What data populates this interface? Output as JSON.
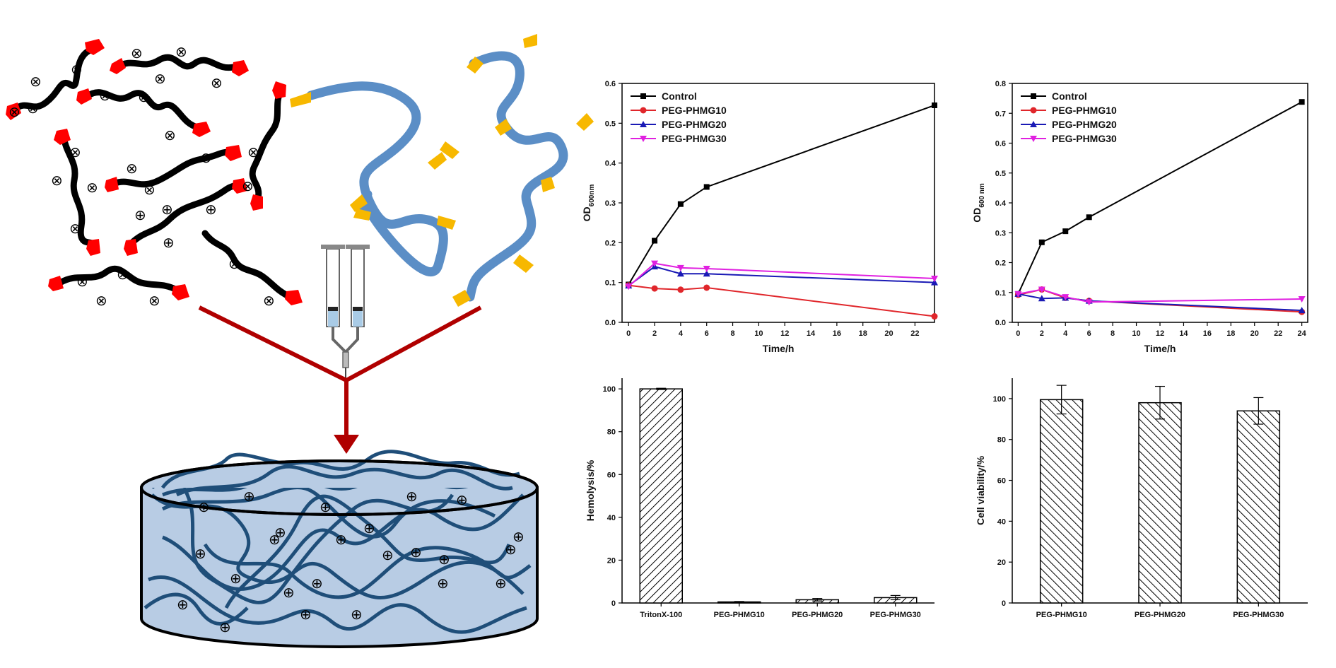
{
  "chart_data": [
    {
      "type": "line",
      "xlabel": "Time/h",
      "ylabel_main": "OD",
      "ylabel_sub": "600nm",
      "xlim": [
        -0.5,
        23.5
      ],
      "ylim": [
        0,
        0.6
      ],
      "xticks": [
        0,
        2,
        4,
        6,
        8,
        10,
        12,
        14,
        16,
        18,
        20,
        22
      ],
      "yticks": [
        0.0,
        0.1,
        0.2,
        0.3,
        0.4,
        0.5,
        0.6
      ],
      "ytick_labels": [
        "0.0",
        "0.1",
        "0.2",
        "0.3",
        "0.4",
        "0.5",
        "0.6"
      ],
      "legend_position": "top-left",
      "series": [
        {
          "name": "Control",
          "color": "#000000",
          "marker": "square",
          "x": [
            0,
            2,
            4,
            6,
            23.5
          ],
          "y": [
            0.095,
            0.205,
            0.297,
            0.34,
            0.545
          ]
        },
        {
          "name": "PEG-PHMG10",
          "color": "#e0262b",
          "marker": "circle",
          "x": [
            0,
            2,
            4,
            6,
            23.5
          ],
          "y": [
            0.093,
            0.085,
            0.082,
            0.087,
            0.015
          ]
        },
        {
          "name": "PEG-PHMG20",
          "color": "#1a1ab5",
          "marker": "triangle-up",
          "x": [
            0,
            2,
            4,
            6,
            23.5
          ],
          "y": [
            0.092,
            0.14,
            0.122,
            0.122,
            0.1
          ]
        },
        {
          "name": "PEG-PHMG30",
          "color": "#e020e0",
          "marker": "triangle-down",
          "x": [
            0,
            2,
            4,
            6,
            23.5
          ],
          "y": [
            0.09,
            0.148,
            0.137,
            0.135,
            0.11
          ]
        }
      ]
    },
    {
      "type": "line",
      "xlabel": "Time/h",
      "ylabel_main": "OD",
      "ylabel_sub": "600 nm",
      "xlim": [
        -0.5,
        24.5
      ],
      "ylim": [
        0,
        0.8
      ],
      "xticks": [
        0,
        2,
        4,
        6,
        8,
        10,
        12,
        14,
        16,
        18,
        20,
        22,
        24
      ],
      "yticks": [
        0.0,
        0.1,
        0.2,
        0.3,
        0.4,
        0.5,
        0.6,
        0.7,
        0.8
      ],
      "ytick_labels": [
        "0.0",
        "0.1",
        "0.2",
        "0.3",
        "0.4",
        "0.5",
        "0.6",
        "0.7",
        "0.8"
      ],
      "legend_position": "top-left",
      "series": [
        {
          "name": "Control",
          "color": "#000000",
          "marker": "square",
          "x": [
            0,
            2,
            4,
            6,
            24
          ],
          "y": [
            0.095,
            0.268,
            0.305,
            0.352,
            0.738
          ]
        },
        {
          "name": "PEG-PHMG10",
          "color": "#e0262b",
          "marker": "circle",
          "x": [
            0,
            2,
            4,
            6,
            24
          ],
          "y": [
            0.092,
            0.11,
            0.082,
            0.072,
            0.035
          ]
        },
        {
          "name": "PEG-PHMG20",
          "color": "#1a1ab5",
          "marker": "triangle-up",
          "x": [
            0,
            2,
            4,
            6,
            24
          ],
          "y": [
            0.095,
            0.08,
            0.082,
            0.072,
            0.04
          ]
        },
        {
          "name": "PEG-PHMG30",
          "color": "#e020e0",
          "marker": "triangle-down",
          "x": [
            0,
            2,
            4,
            6,
            24
          ],
          "y": [
            0.095,
            0.11,
            0.085,
            0.068,
            0.078
          ]
        }
      ]
    },
    {
      "type": "bar",
      "ylabel": "Hemolysis/%",
      "ylim": [
        0,
        105
      ],
      "yticks": [
        0,
        20,
        40,
        60,
        80,
        100
      ],
      "categories": [
        "TritonX-100",
        "PEG-PHMG10",
        "PEG-PHMG20",
        "PEG-PHMG30"
      ],
      "values": [
        100,
        0.5,
        1.5,
        2.5
      ],
      "errors": [
        0.3,
        0.2,
        0.6,
        1.0
      ],
      "pattern": "hatched-diagonal"
    },
    {
      "type": "bar",
      "ylabel": "Cell viability/%",
      "ylim": [
        0,
        110
      ],
      "yticks": [
        0,
        20,
        40,
        60,
        80,
        100
      ],
      "categories": [
        "PEG-PHMG10",
        "PEG-PHMG20",
        "PEG-PHMG30"
      ],
      "values": [
        99.5,
        98,
        94
      ],
      "errors": [
        7,
        8,
        6.5
      ],
      "pattern": "hatched-diagonal"
    }
  ],
  "schematic": {
    "charge_symbol_plus": "⊕",
    "charge_symbol_cross": "⊗",
    "colors": {
      "cation_polymer": "#000000",
      "end_group_red": "#ff0000",
      "peg_chain": "#5b8ec6",
      "end_group_yellow": "#f7b800",
      "arrow": "#b00000",
      "gel_fill": "#b8cce4",
      "gel_chain": "#1f4e79"
    }
  }
}
